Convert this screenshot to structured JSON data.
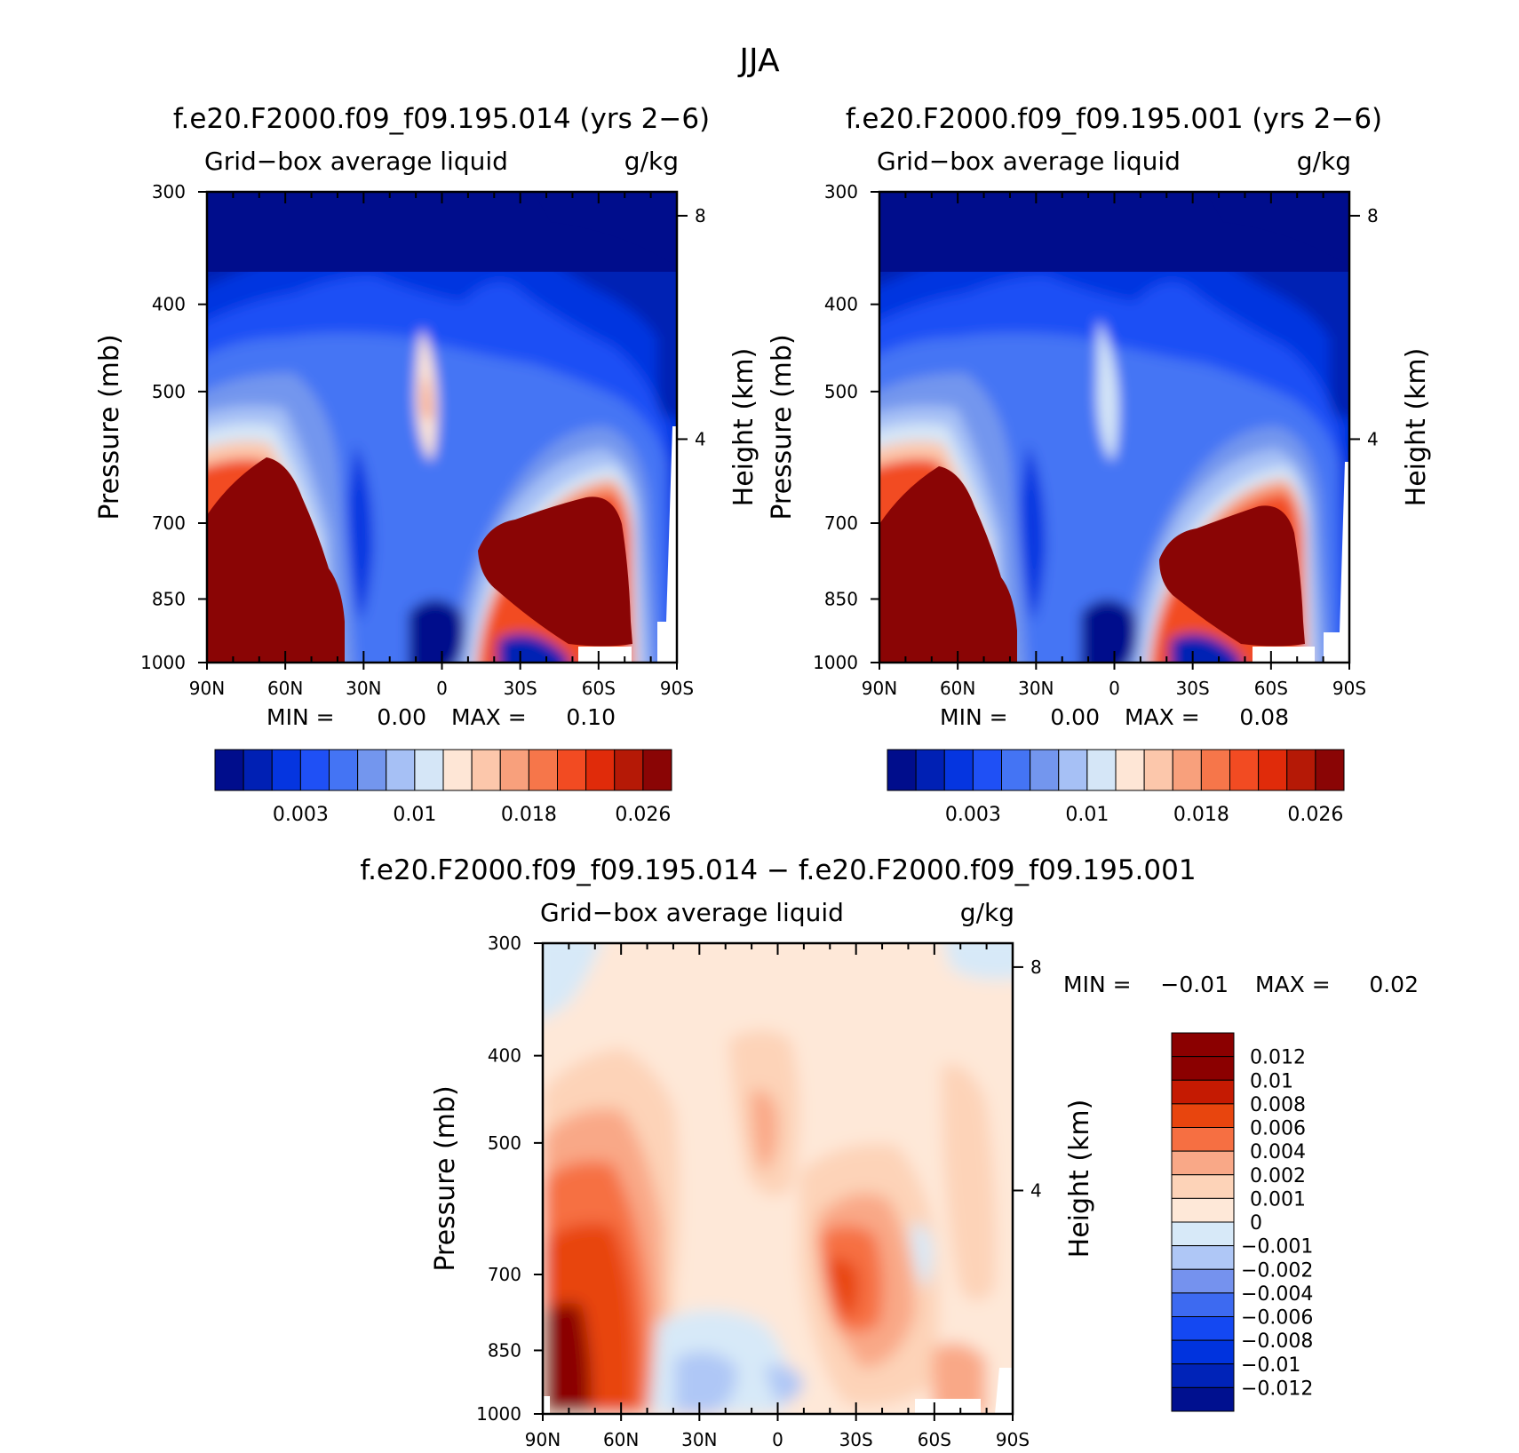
{
  "suptitle": "JJA",
  "palette_main": [
    "#000d8c",
    "#0020b4",
    "#0535e0",
    "#1f50f5",
    "#4474f4",
    "#7396ee",
    "#a6c0f5",
    "#d5e6f7",
    "#fee6d6",
    "#fcc7ab",
    "#f8a07c",
    "#f6764a",
    "#f24b22",
    "#e02b0a",
    "#b51906",
    "#8a0505"
  ],
  "palette_diff": [
    "#00108f",
    "#0023b8",
    "#0033de",
    "#1448f2",
    "#3d6af1",
    "#7592ee",
    "#afc7f6",
    "#d7e9f8",
    "#fee8d8",
    "#fdd3b8",
    "#f9a887",
    "#f66f42",
    "#e8450e",
    "#c51a02",
    "#8b0000"
  ],
  "left_panel": {
    "title": "f.e20.F2000.f09_f09.195.014 (yrs 2−6)",
    "var_label": "Grid−box average liquid",
    "units": "g/kg",
    "min_label": "MIN =",
    "min_value": "0.00",
    "max_label": "MAX =",
    "max_value": "0.10"
  },
  "right_panel": {
    "title": "f.e20.F2000.f09_f09.195.001 (yrs 2−6)",
    "var_label": "Grid−box average liquid",
    "units": "g/kg",
    "min_label": "MIN =",
    "min_value": "0.00",
    "max_label": "MAX =",
    "max_value": "0.08"
  },
  "diff_panel": {
    "title": "f.e20.F2000.f09_f09.195.014 − f.e20.F2000.f09_f09.195.001",
    "var_label": "Grid−box average liquid",
    "units": "g/kg",
    "min_label": "MIN =",
    "min_value": "−0.01",
    "max_label": "MAX =",
    "max_value": "0.02"
  },
  "chart_data": [
    {
      "type": "heatmap",
      "title": "f.e20.F2000.f09_f09.195.014 (yrs 2−6)",
      "variable": "Grid−box average liquid",
      "units": "g/kg",
      "ylabel": "Pressure (mb)",
      "ylabel_right": "Height (km)",
      "x_ticks": [
        "90N",
        "60N",
        "30N",
        "0",
        "30S",
        "60S",
        "90S"
      ],
      "y_ticks": [
        "300",
        "400",
        "500",
        "700",
        "850",
        "1000"
      ],
      "y_ticks_right": [
        "8",
        "4"
      ],
      "colorbar_labels": [
        "0.003",
        "0.01",
        "0.018",
        "0.026"
      ],
      "min": 0.0,
      "max": 0.1
    },
    {
      "type": "heatmap",
      "title": "f.e20.F2000.f09_f09.195.001 (yrs 2−6)",
      "variable": "Grid−box average liquid",
      "units": "g/kg",
      "ylabel": "Pressure (mb)",
      "ylabel_right": "Height (km)",
      "x_ticks": [
        "90N",
        "60N",
        "30N",
        "0",
        "30S",
        "60S",
        "90S"
      ],
      "y_ticks": [
        "300",
        "400",
        "500",
        "700",
        "850",
        "1000"
      ],
      "y_ticks_right": [
        "8",
        "4"
      ],
      "colorbar_labels": [
        "0.003",
        "0.01",
        "0.018",
        "0.026"
      ],
      "min": 0.0,
      "max": 0.08
    },
    {
      "type": "heatmap",
      "title": "f.e20.F2000.f09_f09.195.014 − f.e20.F2000.f09_f09.195.001",
      "variable": "Grid−box average liquid",
      "units": "g/kg",
      "ylabel": "Pressure (mb)",
      "ylabel_right": "Height (km)",
      "x_ticks": [
        "90N",
        "60N",
        "30N",
        "0",
        "30S",
        "60S",
        "90S"
      ],
      "y_ticks": [
        "300",
        "400",
        "500",
        "700",
        "850",
        "1000"
      ],
      "y_ticks_right": [
        "8",
        "4"
      ],
      "colorbar_labels": [
        "0.012",
        "0.01",
        "0.008",
        "0.006",
        "0.004",
        "0.002",
        "0.001",
        "0",
        "−0.001",
        "−0.002",
        "−0.004",
        "−0.006",
        "−0.008",
        "−0.01",
        "−0.012"
      ],
      "min": -0.01,
      "max": 0.02
    }
  ]
}
